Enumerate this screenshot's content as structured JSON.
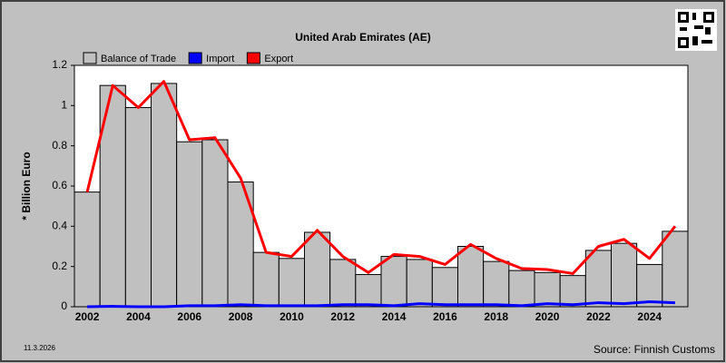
{
  "chart_data": {
    "type": "bar",
    "title": "United Arab Emirates (AE)",
    "y_label": "* Billion Euro",
    "source": "Source: Finnish Customs",
    "date": "11.3.2026",
    "categories": [
      2002,
      null,
      2004,
      null,
      2006,
      null,
      2008,
      null,
      2010,
      null,
      2012,
      null,
      2014,
      null,
      2016,
      null,
      2018,
      null,
      2020,
      null,
      2022,
      null,
      2024,
      null
    ],
    "series": [
      {
        "name": "Balance of Trade",
        "color": "#c0c0c0",
        "values": [
          0.57,
          1.1,
          0.99,
          1.11,
          0.82,
          0.83,
          0.62,
          0.27,
          0.24,
          0.37,
          0.235,
          0.16,
          0.25,
          0.235,
          0.195,
          0.3,
          0.225,
          0.18,
          0.17,
          0.155,
          0.28,
          0.315,
          0.21,
          0.375
        ]
      },
      {
        "name": "Import",
        "color": "#0000ff",
        "values": [
          0,
          0.002,
          0,
          0,
          0.005,
          0.005,
          0.01,
          0.005,
          0.005,
          0.005,
          0.01,
          0.01,
          0.005,
          0.015,
          0.01,
          0.01,
          0.01,
          0.005,
          0.015,
          0.01,
          0.02,
          0.015,
          0.025,
          0.02
        ]
      },
      {
        "name": "Export",
        "color": "#ff0000",
        "values": [
          0.57,
          1.1,
          0.99,
          1.12,
          0.83,
          0.84,
          0.64,
          0.27,
          0.25,
          0.38,
          0.25,
          0.17,
          0.26,
          0.25,
          0.21,
          0.31,
          0.24,
          0.19,
          0.185,
          0.165,
          0.3,
          0.335,
          0.24,
          0.4
        ]
      }
    ],
    "ylim": [
      0,
      1.2
    ],
    "yticks": [
      0,
      0.2,
      0.4,
      0.6,
      0.8,
      1,
      1.2
    ],
    "grid": false
  }
}
